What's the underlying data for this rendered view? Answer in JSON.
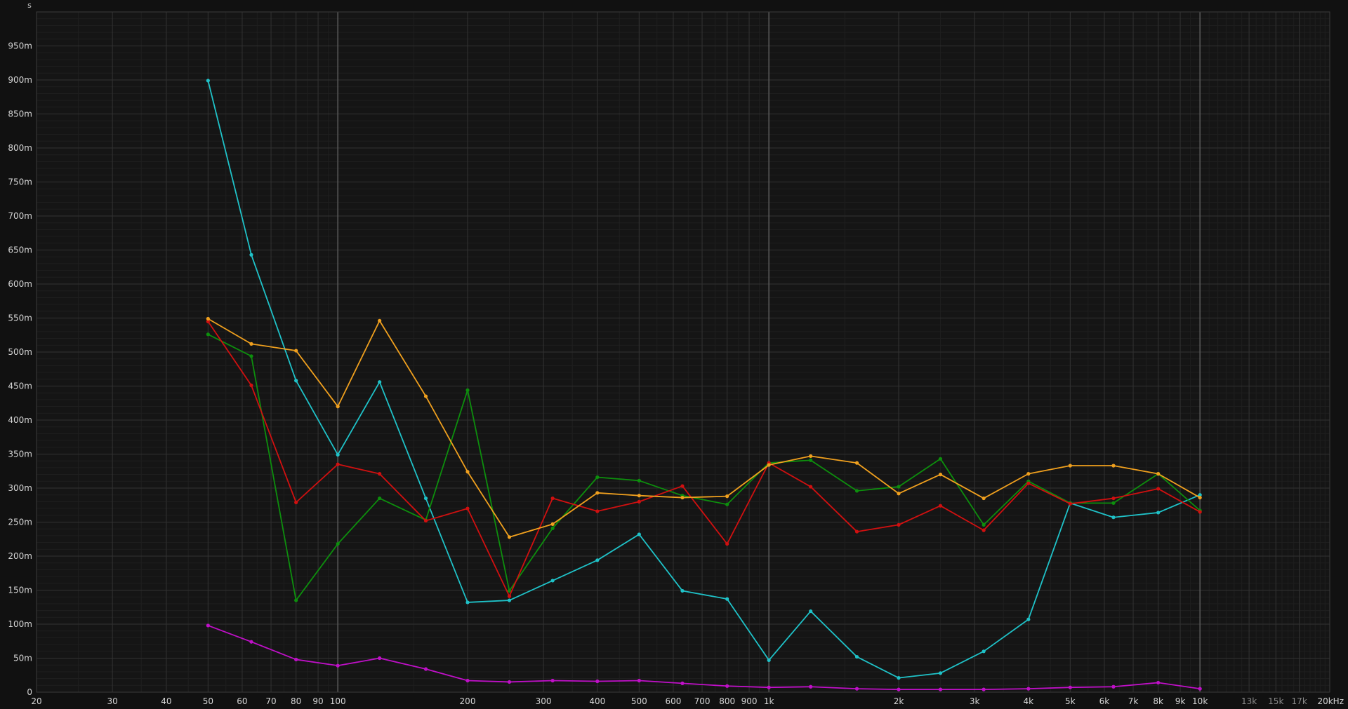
{
  "chart_data": {
    "type": "line",
    "x_scale": "log",
    "xlim": [
      20,
      20000
    ],
    "ylim": [
      0,
      1
    ],
    "y_unit": "s",
    "x_ticks": [
      {
        "value": 20,
        "label": "20"
      },
      {
        "value": 30,
        "label": "30"
      },
      {
        "value": 40,
        "label": "40"
      },
      {
        "value": 50,
        "label": "50"
      },
      {
        "value": 60,
        "label": "60"
      },
      {
        "value": 70,
        "label": "70"
      },
      {
        "value": 80,
        "label": "80"
      },
      {
        "value": 90,
        "label": "90"
      },
      {
        "value": 100,
        "label": "100"
      },
      {
        "value": 200,
        "label": "200"
      },
      {
        "value": 300,
        "label": "300"
      },
      {
        "value": 400,
        "label": "400"
      },
      {
        "value": 500,
        "label": "500"
      },
      {
        "value": 600,
        "label": "600"
      },
      {
        "value": 700,
        "label": "700"
      },
      {
        "value": 800,
        "label": "800"
      },
      {
        "value": 900,
        "label": "900"
      },
      {
        "value": 1000,
        "label": "1k"
      },
      {
        "value": 2000,
        "label": "2k"
      },
      {
        "value": 3000,
        "label": "3k"
      },
      {
        "value": 4000,
        "label": "4k"
      },
      {
        "value": 5000,
        "label": "5k"
      },
      {
        "value": 6000,
        "label": "6k"
      },
      {
        "value": 7000,
        "label": "7k"
      },
      {
        "value": 8000,
        "label": "8k"
      },
      {
        "value": 9000,
        "label": "9k"
      },
      {
        "value": 10000,
        "label": "10k"
      },
      {
        "value": 13000,
        "label": "13k",
        "dim": true
      },
      {
        "value": 15000,
        "label": "15k",
        "dim": true
      },
      {
        "value": 17000,
        "label": "17k",
        "dim": true
      },
      {
        "value": 20000,
        "label": "20kHz"
      }
    ],
    "y_ticks": [
      {
        "value": 0,
        "label": "0"
      },
      {
        "value": 0.05,
        "label": "50m"
      },
      {
        "value": 0.1,
        "label": "100m"
      },
      {
        "value": 0.15,
        "label": "150m"
      },
      {
        "value": 0.2,
        "label": "200m"
      },
      {
        "value": 0.25,
        "label": "250m"
      },
      {
        "value": 0.3,
        "label": "300m"
      },
      {
        "value": 0.35,
        "label": "350m"
      },
      {
        "value": 0.4,
        "label": "400m"
      },
      {
        "value": 0.45,
        "label": "450m"
      },
      {
        "value": 0.5,
        "label": "500m"
      },
      {
        "value": 0.55,
        "label": "550m"
      },
      {
        "value": 0.6,
        "label": "600m"
      },
      {
        "value": 0.65,
        "label": "650m"
      },
      {
        "value": 0.7,
        "label": "700m"
      },
      {
        "value": 0.75,
        "label": "750m"
      },
      {
        "value": 0.8,
        "label": "800m"
      },
      {
        "value": 0.85,
        "label": "850m"
      },
      {
        "value": 0.9,
        "label": "900m"
      },
      {
        "value": 0.95,
        "label": "950m"
      }
    ],
    "x": [
      50,
      63,
      80,
      100,
      125,
      160,
      200,
      250,
      315,
      400,
      500,
      630,
      800,
      1000,
      1250,
      1600,
      2000,
      2500,
      3150,
      4000,
      5000,
      6300,
      8000,
      10000
    ],
    "series": [
      {
        "color": "#1fc2c8",
        "values": [
          0.899,
          0.643,
          0.458,
          0.349,
          0.456,
          0.285,
          0.132,
          0.135,
          0.164,
          0.194,
          0.232,
          0.149,
          0.137,
          0.047,
          0.119,
          0.052,
          0.021,
          0.028,
          0.06,
          0.107,
          0.278,
          0.257,
          0.264,
          0.29
        ]
      },
      {
        "color": "#0d8e0d",
        "values": [
          0.526,
          0.494,
          0.135,
          0.218,
          0.285,
          0.253,
          0.444,
          0.149,
          0.241,
          0.316,
          0.311,
          0.289,
          0.276,
          0.337,
          0.341,
          0.296,
          0.302,
          0.343,
          0.246,
          0.31,
          0.278,
          0.278,
          0.321,
          0.267
        ]
      },
      {
        "color": "#d01010",
        "values": [
          0.545,
          0.451,
          0.279,
          0.335,
          0.321,
          0.252,
          0.27,
          0.141,
          0.285,
          0.266,
          0.28,
          0.303,
          0.218,
          0.337,
          0.302,
          0.236,
          0.246,
          0.274,
          0.238,
          0.307,
          0.277,
          0.285,
          0.299,
          0.265
        ]
      },
      {
        "color": "#f0a01e",
        "values": [
          0.549,
          0.512,
          0.502,
          0.42,
          0.546,
          0.435,
          0.324,
          0.228,
          0.247,
          0.293,
          0.289,
          0.286,
          0.288,
          0.334,
          0.347,
          0.337,
          0.292,
          0.32,
          0.285,
          0.321,
          0.333,
          0.333,
          0.321,
          0.286
        ]
      },
      {
        "color": "#c010c8",
        "values": [
          0.098,
          0.074,
          0.048,
          0.039,
          0.05,
          0.034,
          0.017,
          0.015,
          0.017,
          0.016,
          0.017,
          0.013,
          0.009,
          0.007,
          0.008,
          0.005,
          0.004,
          0.004,
          0.004,
          0.005,
          0.007,
          0.008,
          0.014,
          0.005
        ]
      }
    ],
    "grid": true,
    "legend": "none"
  }
}
